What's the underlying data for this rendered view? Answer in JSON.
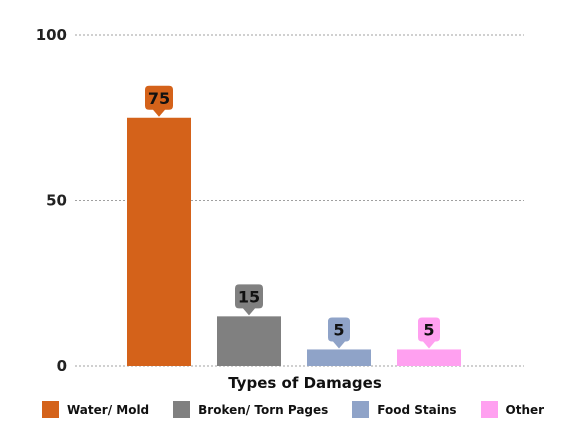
{
  "chart_data": {
    "type": "bar",
    "categories": [
      "Water/ Mold",
      "Broken/ Torn Pages",
      "Food Stains",
      "Other"
    ],
    "values": [
      75,
      15,
      5,
      5
    ],
    "data_labels": [
      "75",
      "15",
      "5",
      "5"
    ],
    "colors": [
      "#d4621a",
      "#808080",
      "#8fa3c8",
      "#ffa0f0"
    ],
    "title": "",
    "xlabel": "Types of Damages",
    "ylabel": "",
    "ylim": [
      0,
      100
    ],
    "yticks": [
      0,
      50,
      100
    ],
    "ytick_labels": [
      "0",
      "50",
      "100"
    ],
    "grid": true,
    "legend_position": "bottom"
  }
}
